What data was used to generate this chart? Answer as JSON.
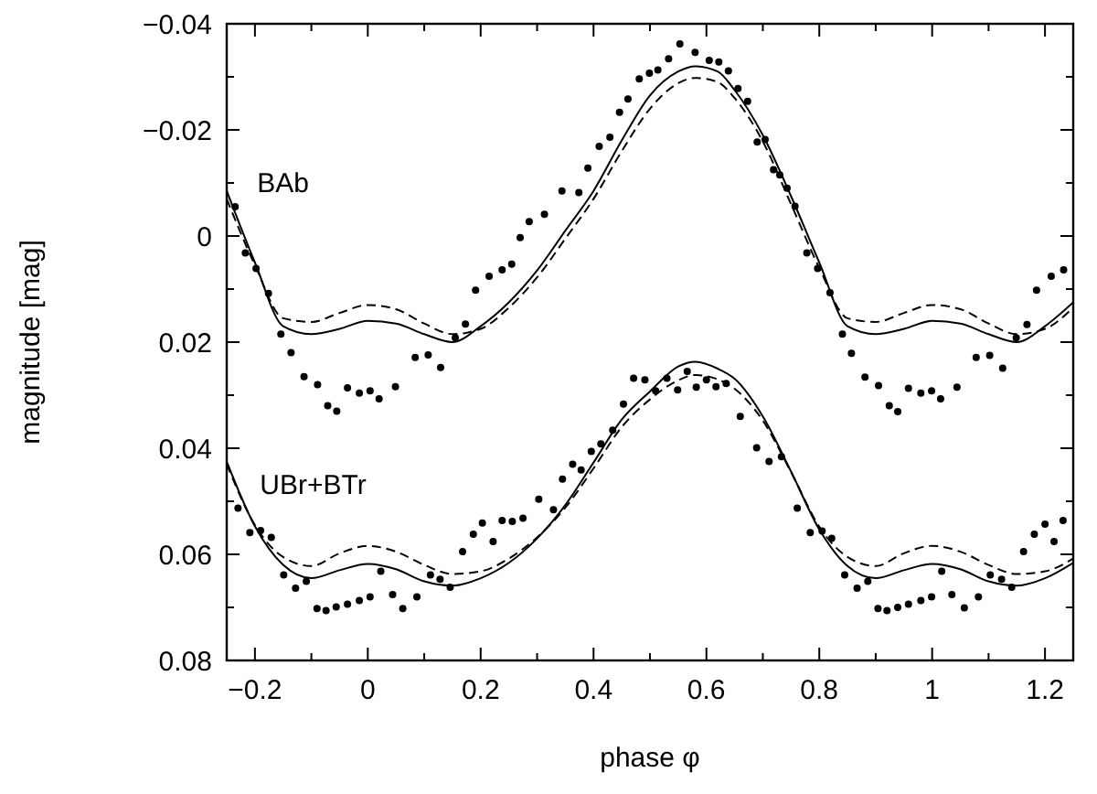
{
  "chart_data": {
    "type": "scatter",
    "xlabel": "phase φ",
    "ylabel": "magnitude [mag]",
    "xlim": [
      -0.25,
      1.25
    ],
    "ylim": [
      0.08,
      -0.04
    ],
    "xticks": [
      -0.2,
      {
        "value": -0.1,
        "label": null
      },
      0,
      {
        "value": 0.1,
        "label": null
      },
      0.2,
      {
        "value": 0.3,
        "label": null
      },
      0.4,
      {
        "value": 0.5,
        "label": null
      },
      0.6,
      {
        "value": 0.7,
        "label": null
      },
      0.8,
      {
        "value": 0.9,
        "label": null
      },
      1,
      {
        "value": 1.1,
        "label": null
      },
      1.2
    ],
    "yticks": [
      -0.04,
      {
        "value": -0.03,
        "label": null
      },
      -0.02,
      {
        "value": -0.01,
        "label": null
      },
      0,
      {
        "value": 0.01,
        "label": null
      },
      0.02,
      {
        "value": 0.03,
        "label": null
      },
      0.04,
      {
        "value": 0.05,
        "label": null
      },
      0.06,
      {
        "value": 0.07,
        "label": null
      },
      0.08
    ],
    "grid": false,
    "series": [
      {
        "name": "BAb",
        "marker": "circle",
        "color": "#000000",
        "x": [
          -0.235,
          -0.217,
          -0.198,
          -0.176,
          -0.154,
          -0.136,
          -0.113,
          -0.089,
          -0.071,
          -0.055,
          -0.036,
          -0.015,
          0.004,
          0.02,
          0.049,
          0.084,
          0.107,
          0.129,
          0.155,
          0.173,
          0.191,
          0.215,
          0.238,
          0.255,
          0.27,
          0.286,
          0.313,
          0.344,
          0.374,
          0.39,
          0.41,
          0.429,
          0.446,
          0.461,
          0.481,
          0.499,
          0.514,
          0.533,
          0.553,
          0.58,
          0.605,
          0.622,
          0.639,
          0.656,
          0.673,
          0.69,
          0.704,
          0.719,
          0.73,
          0.743,
          0.757,
          0.778,
          0.797,
          0.819,
          0.841,
          0.857,
          0.881,
          0.905,
          0.924,
          0.939,
          0.958,
          0.98,
          0.999,
          1.015,
          1.044,
          1.078,
          1.102,
          1.125,
          1.149,
          1.168,
          1.185,
          1.211,
          1.233
        ],
        "values": [
          -0.0055,
          0.0032,
          0.0061,
          0.0108,
          0.0185,
          0.022,
          0.0265,
          0.028,
          0.032,
          0.033,
          0.0286,
          0.0296,
          0.0292,
          0.0307,
          0.0284,
          0.0229,
          0.0224,
          0.0248,
          0.0192,
          0.0166,
          0.0102,
          0.0076,
          0.0064,
          0.0053,
          0.0003,
          -0.0027,
          -0.0041,
          -0.0085,
          -0.0082,
          -0.0128,
          -0.0169,
          -0.0186,
          -0.0233,
          -0.0258,
          -0.0296,
          -0.0307,
          -0.0313,
          -0.0334,
          -0.0362,
          -0.0346,
          -0.0331,
          -0.0328,
          -0.0311,
          -0.0278,
          -0.0254,
          -0.0177,
          -0.0182,
          -0.0125,
          -0.0115,
          -0.009,
          -0.0056,
          0.0032,
          0.0061,
          0.0107,
          0.0185,
          0.0221,
          0.0266,
          0.0282,
          0.032,
          0.0331,
          0.0287,
          0.0296,
          0.0292,
          0.0307,
          0.0285,
          0.0229,
          0.0225,
          0.0249,
          0.0192,
          0.0167,
          0.0102,
          0.0076,
          0.0064
        ]
      },
      {
        "type": "line",
        "marker": "none",
        "line_style": "solid",
        "color": "#000000",
        "x": [
          -0.25,
          -0.2,
          -0.15,
          -0.1,
          -0.05,
          0,
          0.05,
          0.1,
          0.15,
          0.2,
          0.25,
          0.3,
          0.35,
          0.4,
          0.45,
          0.5,
          0.55,
          0.58,
          0.62,
          0.65,
          0.7,
          0.75,
          0.8,
          0.85,
          0.9,
          0.95,
          1,
          1.05,
          1.1,
          1.15,
          1.2,
          1.25
        ],
        "values": [
          -0.0085,
          0.005,
          0.017,
          0.0185,
          0.0175,
          0.016,
          0.0165,
          0.0185,
          0.02,
          0.017,
          0.0125,
          0.0065,
          -0.001,
          -0.0085,
          -0.018,
          -0.0265,
          -0.031,
          -0.032,
          -0.031,
          -0.0275,
          -0.019,
          -0.0075,
          0.005,
          0.017,
          0.0185,
          0.0175,
          0.016,
          0.0165,
          0.0185,
          0.02,
          0.017,
          0.0125
        ]
      },
      {
        "type": "line",
        "marker": "none",
        "line_style": "dashed",
        "color": "#000000",
        "x": [
          -0.25,
          -0.2,
          -0.15,
          -0.1,
          -0.05,
          0,
          0.05,
          0.1,
          0.15,
          0.2,
          0.25,
          0.3,
          0.35,
          0.4,
          0.45,
          0.5,
          0.55,
          0.58,
          0.62,
          0.65,
          0.7,
          0.75,
          0.8,
          0.85,
          0.9,
          0.95,
          1,
          1.05,
          1.1,
          1.15,
          1.2,
          1.25
        ],
        "values": [
          -0.007,
          0.0055,
          0.0155,
          0.0162,
          0.0145,
          0.013,
          0.0138,
          0.0165,
          0.0185,
          0.0175,
          0.0135,
          0.0078,
          0.0005,
          -0.007,
          -0.016,
          -0.024,
          -0.0288,
          -0.0298,
          -0.029,
          -0.026,
          -0.0178,
          -0.006,
          0.006,
          0.0155,
          0.0162,
          0.0145,
          0.013,
          0.0138,
          0.0165,
          0.0185,
          0.0175,
          0.0135
        ]
      },
      {
        "name": "UBr+BTr",
        "marker": "circle",
        "color": "#000000",
        "x": [
          -0.23,
          -0.209,
          -0.19,
          -0.171,
          -0.149,
          -0.128,
          -0.109,
          -0.09,
          -0.074,
          -0.056,
          -0.036,
          -0.015,
          0.004,
          0.023,
          0.044,
          0.062,
          0.087,
          0.111,
          0.128,
          0.146,
          0.168,
          0.187,
          0.203,
          0.222,
          0.238,
          0.256,
          0.275,
          0.303,
          0.329,
          0.345,
          0.363,
          0.378,
          0.396,
          0.413,
          0.434,
          0.453,
          0.471,
          0.491,
          0.51,
          0.53,
          0.549,
          0.566,
          0.582,
          0.6,
          0.617,
          0.635,
          0.66,
          0.689,
          0.711,
          0.733,
          0.761,
          0.784,
          0.805,
          0.822,
          0.845,
          0.867,
          0.886,
          0.904,
          0.92,
          0.939,
          0.958,
          0.98,
          0.999,
          1.017,
          1.035,
          1.057,
          1.082,
          1.103,
          1.123,
          1.141,
          1.162,
          1.181,
          1.2,
          1.216,
          1.232
        ],
        "values": [
          0.0513,
          0.0559,
          0.0555,
          0.0568,
          0.0639,
          0.0664,
          0.0651,
          0.0702,
          0.0706,
          0.0699,
          0.0694,
          0.0687,
          0.068,
          0.0632,
          0.0676,
          0.0702,
          0.068,
          0.0639,
          0.0647,
          0.0662,
          0.0595,
          0.0562,
          0.0541,
          0.0576,
          0.0536,
          0.0538,
          0.0532,
          0.0496,
          0.0516,
          0.0458,
          0.043,
          0.0441,
          0.0406,
          0.0392,
          0.0366,
          0.0317,
          0.0268,
          0.0271,
          0.0292,
          0.0268,
          0.029,
          0.0255,
          0.0285,
          0.0271,
          0.0284,
          0.0278,
          0.034,
          0.0399,
          0.0425,
          0.0416,
          0.0513,
          0.0559,
          0.0556,
          0.057,
          0.0639,
          0.0664,
          0.0651,
          0.0702,
          0.0706,
          0.07,
          0.0694,
          0.0687,
          0.068,
          0.0632,
          0.0676,
          0.0701,
          0.068,
          0.0639,
          0.0647,
          0.0662,
          0.0595,
          0.0562,
          0.0543,
          0.0576,
          0.0536
        ]
      },
      {
        "type": "line",
        "marker": "none",
        "line_style": "solid",
        "color": "#000000",
        "x": [
          -0.25,
          -0.2,
          -0.15,
          -0.1,
          -0.05,
          0,
          0.05,
          0.1,
          0.15,
          0.2,
          0.25,
          0.3,
          0.35,
          0.4,
          0.45,
          0.5,
          0.55,
          0.58,
          0.62,
          0.65,
          0.7,
          0.75,
          0.8,
          0.85,
          0.9,
          0.95,
          1,
          1.05,
          1.1,
          1.15,
          1.2,
          1.25
        ],
        "values": [
          0.0425,
          0.0547,
          0.062,
          0.0645,
          0.063,
          0.0618,
          0.0628,
          0.0651,
          0.0659,
          0.0645,
          0.0616,
          0.057,
          0.0507,
          0.0427,
          0.0346,
          0.0293,
          0.0246,
          0.0237,
          0.025,
          0.0269,
          0.034,
          0.0444,
          0.0553,
          0.0622,
          0.0645,
          0.063,
          0.0618,
          0.0628,
          0.0651,
          0.0659,
          0.0645,
          0.0616
        ]
      },
      {
        "type": "line",
        "marker": "none",
        "line_style": "dashed",
        "color": "#000000",
        "x": [
          -0.25,
          -0.2,
          -0.15,
          -0.1,
          -0.05,
          0,
          0.05,
          0.1,
          0.15,
          0.2,
          0.25,
          0.3,
          0.35,
          0.4,
          0.45,
          0.5,
          0.55,
          0.58,
          0.62,
          0.65,
          0.7,
          0.75,
          0.8,
          0.85,
          0.9,
          0.95,
          1,
          1.05,
          1.1,
          1.15,
          1.2,
          1.25
        ],
        "values": [
          0.043,
          0.0545,
          0.0605,
          0.0622,
          0.0598,
          0.0584,
          0.0595,
          0.062,
          0.0637,
          0.0632,
          0.0608,
          0.0568,
          0.0512,
          0.0438,
          0.036,
          0.0308,
          0.0272,
          0.0262,
          0.027,
          0.0288,
          0.0348,
          0.0445,
          0.0548,
          0.0605,
          0.0622,
          0.0598,
          0.0584,
          0.0595,
          0.062,
          0.0637,
          0.0632,
          0.0608
        ]
      }
    ]
  }
}
